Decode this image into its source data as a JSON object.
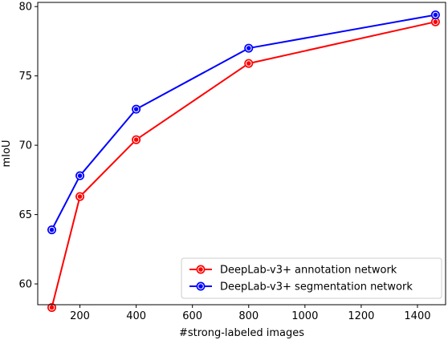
{
  "chart_data": {
    "type": "line",
    "title": "",
    "xlabel": "#strong-labeled images",
    "ylabel": "mIoU",
    "xlim": [
      50,
      1500
    ],
    "ylim": [
      58.5,
      80.3
    ],
    "xticks": [
      200,
      400,
      600,
      800,
      1000,
      1200,
      1400
    ],
    "xtick_labels": [
      "200",
      "400",
      "600",
      "800",
      "1000",
      "1200",
      "1400"
    ],
    "yticks": [
      60,
      65,
      70,
      75,
      80
    ],
    "ytick_labels": [
      "60",
      "65",
      "70",
      "75",
      "80"
    ],
    "grid": false,
    "legend_position": "lower-right",
    "series": [
      {
        "name": "DeepLab-v3+ annotation network",
        "color": "#ff0000",
        "marker": "double-circle",
        "x": [
          100,
          200,
          400,
          800,
          1464
        ],
        "y": [
          58.3,
          66.3,
          70.4,
          75.9,
          78.9
        ]
      },
      {
        "name": "DeepLab-v3+ segmentation network",
        "color": "#0000ff",
        "marker": "double-circle",
        "x": [
          100,
          200,
          400,
          800,
          1464
        ],
        "y": [
          63.9,
          67.8,
          72.6,
          77.0,
          79.4
        ]
      }
    ]
  }
}
